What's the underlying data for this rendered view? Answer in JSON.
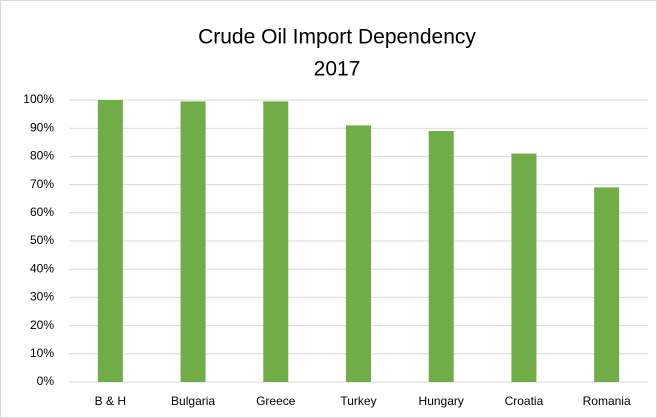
{
  "chart_data": {
    "type": "bar",
    "title": "Crude Oil Import Dependency",
    "subtitle": "2017",
    "categories": [
      "B & H",
      "Bulgaria",
      "Greece",
      "Turkey",
      "Hungary",
      "Croatia",
      "Romania"
    ],
    "values": [
      100,
      99.5,
      99.5,
      91,
      89,
      81,
      69
    ],
    "color": "#70ad47",
    "ylim": [
      0,
      100
    ],
    "yticks": [
      {
        "value": 0,
        "label": "0%"
      },
      {
        "value": 10,
        "label": "10%"
      },
      {
        "value": 20,
        "label": "20%"
      },
      {
        "value": 30,
        "label": "30%"
      },
      {
        "value": 40,
        "label": "40%"
      },
      {
        "value": 50,
        "label": "50%"
      },
      {
        "value": 60,
        "label": "60%"
      },
      {
        "value": 70,
        "label": "70%"
      },
      {
        "value": 80,
        "label": "80%"
      },
      {
        "value": 90,
        "label": "90%"
      },
      {
        "value": 100,
        "label": "100%"
      }
    ],
    "grid": true
  }
}
